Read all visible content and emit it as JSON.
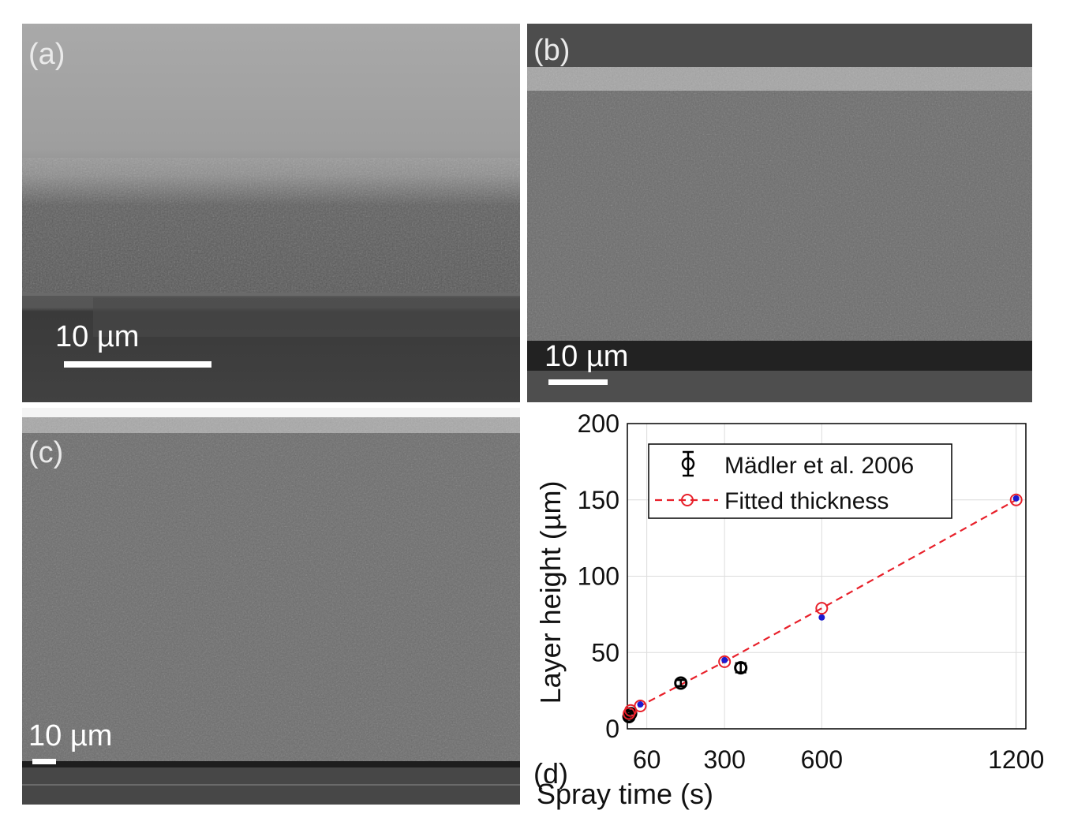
{
  "panels": {
    "a": {
      "label": "(a)",
      "scale": "10 µm"
    },
    "b": {
      "label": "(b)",
      "scale": "10 µm"
    },
    "c": {
      "label": "(c)",
      "scale": "10 µm"
    },
    "d": {
      "label": "(d)"
    }
  },
  "colors": {
    "fit_line": "#e8202a",
    "fit_marker": "#e8202a",
    "data_marker": "#000000",
    "inner_point": "#1a1ad0"
  },
  "chart_data": {
    "type": "scatter",
    "xlabel": "Spray time (s)",
    "ylabel": "Layer height (µm)",
    "xlim": [
      0,
      1230
    ],
    "ylim": [
      0,
      200
    ],
    "xticks": [
      60,
      300,
      600,
      1200
    ],
    "yticks": [
      0,
      50,
      100,
      150,
      200
    ],
    "grid": true,
    "legend_position": "top-left",
    "series": [
      {
        "name": "Mädler et al. 2006",
        "style": "errorbar-diamond",
        "points": [
          {
            "x": 5,
            "y": 8,
            "err": 2
          },
          {
            "x": 10,
            "y": 10,
            "err": 2
          },
          {
            "x": 165,
            "y": 30,
            "err": 2
          },
          {
            "x": 350,
            "y": 40,
            "err": 3
          }
        ]
      },
      {
        "name": "Fitted thickness",
        "style": "dashed-circle",
        "points": [
          {
            "x": 5,
            "y": 10
          },
          {
            "x": 10,
            "y": 12
          },
          {
            "x": 40,
            "y": 15
          },
          {
            "x": 300,
            "y": 44
          },
          {
            "x": 600,
            "y": 79
          },
          {
            "x": 1200,
            "y": 150
          }
        ]
      }
    ],
    "inner_points": [
      {
        "x": 40,
        "y": 16
      },
      {
        "x": 300,
        "y": 45
      },
      {
        "x": 600,
        "y": 73
      },
      {
        "x": 1200,
        "y": 151
      }
    ]
  }
}
